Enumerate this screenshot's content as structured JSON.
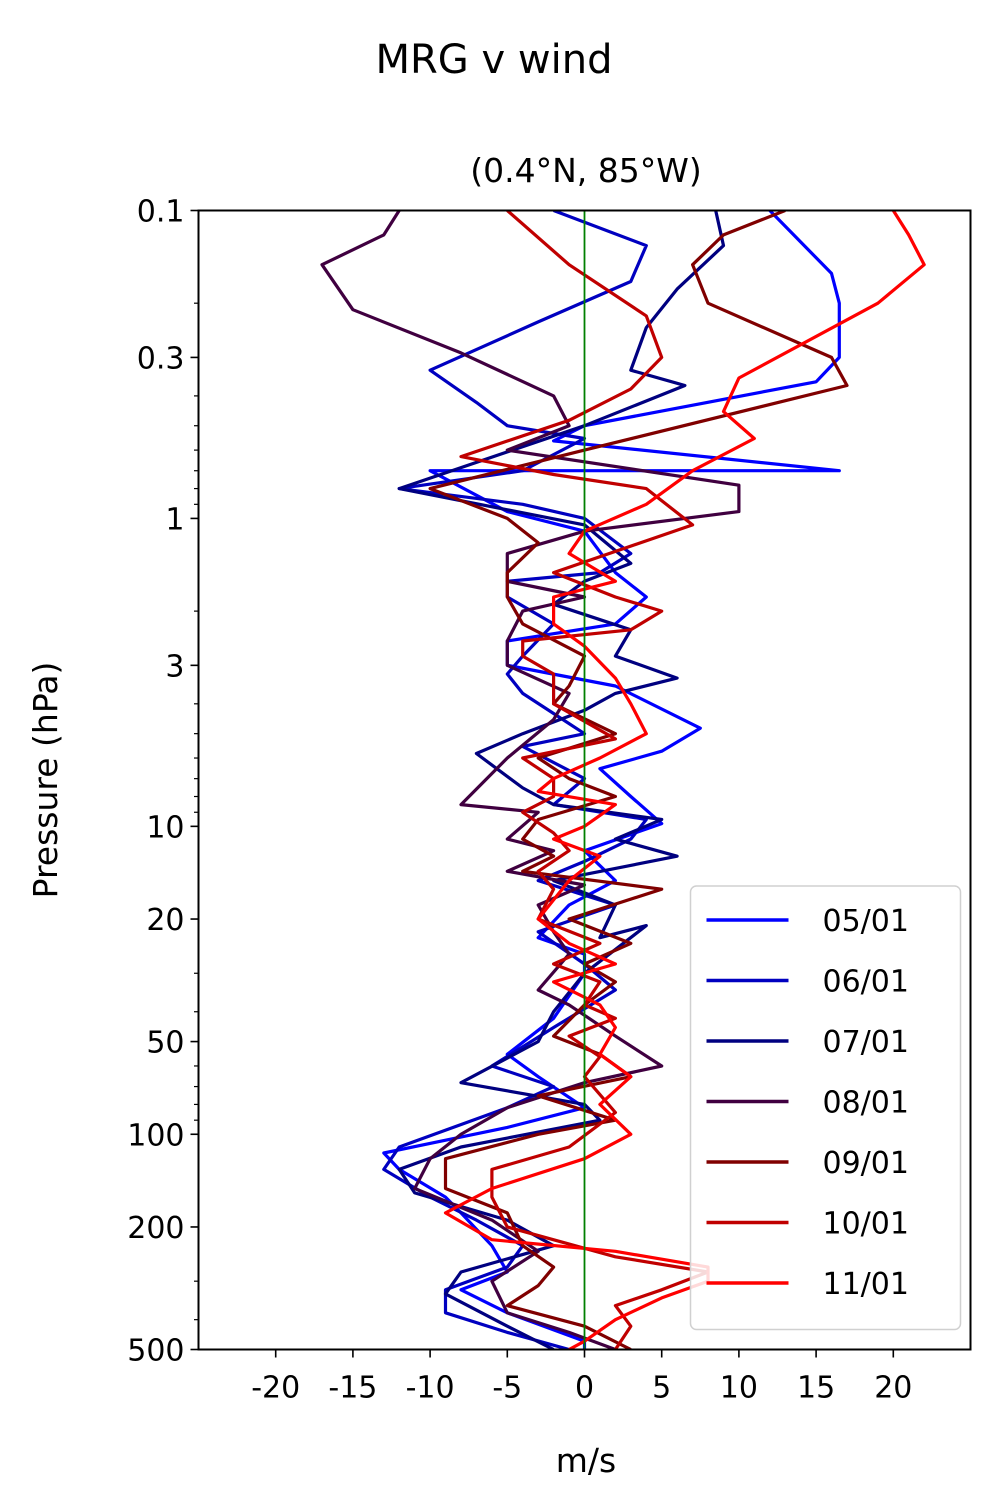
{
  "chart_data": {
    "type": "line",
    "suptitle": "MRG v wind",
    "title": "(0.4°N, 85°W)",
    "xlabel": "m/s",
    "ylabel": "Pressure (hPa)",
    "xlim": [
      -25,
      25
    ],
    "ylim": [
      500,
      0.1
    ],
    "yscale": "log",
    "y_inverted": true,
    "x_ticks": [
      -20,
      -15,
      -10,
      -5,
      0,
      5,
      10,
      15,
      20
    ],
    "x_tick_labels": [
      "-20",
      "-15",
      "-10",
      "-5",
      "0",
      "5",
      "10",
      "15",
      "20"
    ],
    "y_ticks": [
      0.1,
      0.3,
      1,
      3,
      10,
      20,
      50,
      100,
      200,
      500
    ],
    "y_tick_labels": [
      "0.1",
      "0.3",
      "1",
      "3",
      "10",
      "20",
      "50",
      "100",
      "200",
      "500"
    ],
    "zero_line": {
      "x": 0,
      "color": "#008000"
    },
    "grid": false,
    "legend_position": "lower-right",
    "series": [
      {
        "name": "05/01",
        "color": "#0000ff",
        "points": [
          [
            12,
            0.1
          ],
          [
            16,
            0.16
          ],
          [
            16.5,
            0.2
          ],
          [
            16.5,
            0.3
          ],
          [
            15,
            0.36
          ],
          [
            0,
            0.5
          ],
          [
            -2,
            0.56
          ],
          [
            16.5,
            0.7
          ],
          [
            -10,
            0.7
          ],
          [
            -5,
            0.95
          ],
          [
            0,
            1.1
          ],
          [
            2,
            1.5
          ],
          [
            4,
            1.8
          ],
          [
            2,
            2.2
          ],
          [
            -5,
            2.5
          ],
          [
            -5,
            3
          ],
          [
            2,
            3.5
          ],
          [
            7.5,
            4.8
          ],
          [
            5,
            5.7
          ],
          [
            1,
            6.5
          ],
          [
            3,
            8
          ],
          [
            5,
            9.8
          ],
          [
            0,
            12
          ],
          [
            2,
            15
          ],
          [
            -1,
            18
          ],
          [
            -3,
            23
          ],
          [
            0,
            26
          ],
          [
            0,
            30
          ],
          [
            -2,
            42
          ],
          [
            -5,
            55
          ],
          [
            -3,
            65
          ],
          [
            0,
            82
          ],
          [
            -5,
            95
          ],
          [
            -13,
            115
          ],
          [
            -12,
            130
          ],
          [
            -9,
            160
          ],
          [
            -8,
            180
          ],
          [
            -6,
            230
          ],
          [
            -5,
            280
          ],
          [
            -8,
            320
          ],
          [
            -5,
            380
          ],
          [
            0,
            470
          ],
          [
            0,
            500
          ]
        ]
      },
      {
        "name": "06/01",
        "color": "#0000c0",
        "points": [
          [
            -2,
            0.1
          ],
          [
            4,
            0.13
          ],
          [
            3,
            0.17
          ],
          [
            -3,
            0.23
          ],
          [
            -10,
            0.33
          ],
          [
            -7,
            0.42
          ],
          [
            -5,
            0.5
          ],
          [
            0,
            0.55
          ],
          [
            -4,
            0.7
          ],
          [
            -12,
            0.8
          ],
          [
            -4,
            0.9
          ],
          [
            0,
            1.0
          ],
          [
            3,
            1.3
          ],
          [
            1,
            1.5
          ],
          [
            -5,
            1.6
          ],
          [
            -5,
            1.8
          ],
          [
            -2,
            2.2
          ],
          [
            -4,
            2.8
          ],
          [
            -5,
            3.2
          ],
          [
            -4,
            3.7
          ],
          [
            -2,
            4.3
          ],
          [
            0,
            5
          ],
          [
            -4,
            5.5
          ],
          [
            0,
            7
          ],
          [
            -2,
            8.5
          ],
          [
            4,
            9.5
          ],
          [
            3,
            11
          ],
          [
            0,
            13
          ],
          [
            -3,
            15
          ],
          [
            2,
            18
          ],
          [
            -3,
            22
          ],
          [
            0,
            28
          ],
          [
            2,
            34
          ],
          [
            -2,
            45
          ],
          [
            -6,
            60
          ],
          [
            -2,
            70
          ],
          [
            -5,
            82
          ],
          [
            -12,
            110
          ],
          [
            -13,
            130
          ],
          [
            -10,
            160
          ],
          [
            -7,
            190
          ],
          [
            -4,
            230
          ],
          [
            -5,
            270
          ],
          [
            -9,
            320
          ],
          [
            -9,
            380
          ],
          [
            -5,
            440
          ],
          [
            -1,
            500
          ]
        ]
      },
      {
        "name": "07/01",
        "color": "#000080",
        "points": [
          [
            8.5,
            0.1
          ],
          [
            9,
            0.13
          ],
          [
            6,
            0.18
          ],
          [
            4,
            0.24
          ],
          [
            3,
            0.33
          ],
          [
            6.5,
            0.37
          ],
          [
            0,
            0.5
          ],
          [
            -12,
            0.8
          ],
          [
            0,
            1.05
          ],
          [
            3,
            1.4
          ],
          [
            0,
            1.6
          ],
          [
            -2,
            1.9
          ],
          [
            3,
            2.3
          ],
          [
            2,
            2.8
          ],
          [
            6,
            3.3
          ],
          [
            2,
            3.7
          ],
          [
            0,
            4.2
          ],
          [
            -4,
            5
          ],
          [
            -7,
            5.8
          ],
          [
            -4,
            7.5
          ],
          [
            -2,
            8.5
          ],
          [
            5,
            9.5
          ],
          [
            2,
            11
          ],
          [
            6,
            12.5
          ],
          [
            -2,
            15
          ],
          [
            2,
            18
          ],
          [
            1,
            23
          ],
          [
            4,
            21
          ],
          [
            0,
            30
          ],
          [
            -2,
            40
          ],
          [
            -3,
            50
          ],
          [
            -8,
            68
          ],
          [
            0,
            80
          ],
          [
            1,
            90
          ],
          [
            -8,
            110
          ],
          [
            -12,
            130
          ],
          [
            -11,
            155
          ],
          [
            -5,
            190
          ],
          [
            -2,
            230
          ],
          [
            -8,
            280
          ],
          [
            -9,
            330
          ],
          [
            -5,
            420
          ],
          [
            -2,
            500
          ]
        ]
      },
      {
        "name": "08/01",
        "color": "#400040",
        "points": [
          [
            -12,
            0.1
          ],
          [
            -13,
            0.12
          ],
          [
            -17,
            0.15
          ],
          [
            -15,
            0.21
          ],
          [
            -8,
            0.29
          ],
          [
            -2,
            0.4
          ],
          [
            -1,
            0.5
          ],
          [
            -5,
            0.6
          ],
          [
            10,
            0.78
          ],
          [
            10,
            0.95
          ],
          [
            0,
            1.1
          ],
          [
            -5,
            1.3
          ],
          [
            -5,
            1.6
          ],
          [
            0,
            1.8
          ],
          [
            -4,
            2
          ],
          [
            -5,
            2.5
          ],
          [
            -5,
            3
          ],
          [
            -1,
            3.7
          ],
          [
            -2,
            4.5
          ],
          [
            -5,
            6
          ],
          [
            -8,
            8.5
          ],
          [
            -3,
            9
          ],
          [
            -5,
            11
          ],
          [
            -2,
            12
          ],
          [
            -5,
            14
          ],
          [
            0,
            15.5
          ],
          [
            -3,
            18
          ],
          [
            -2,
            22
          ],
          [
            -1,
            26
          ],
          [
            -3,
            34
          ],
          [
            -1,
            38
          ],
          [
            2,
            48
          ],
          [
            5,
            60
          ],
          [
            0,
            68
          ],
          [
            -5,
            82
          ],
          [
            -8,
            100
          ],
          [
            -10,
            120
          ],
          [
            -11,
            150
          ],
          [
            -6,
            190
          ],
          [
            -3,
            240
          ],
          [
            -6,
            300
          ],
          [
            -5,
            380
          ],
          [
            -1,
            440
          ],
          [
            2,
            500
          ]
        ]
      },
      {
        "name": "09/01",
        "color": "#800000",
        "points": [
          [
            13,
            0.1
          ],
          [
            9,
            0.12
          ],
          [
            7,
            0.15
          ],
          [
            8,
            0.2
          ],
          [
            16,
            0.3
          ],
          [
            17,
            0.37
          ],
          [
            0,
            0.6
          ],
          [
            -10,
            0.8
          ],
          [
            -5,
            1.0
          ],
          [
            -3,
            1.2
          ],
          [
            -5,
            1.5
          ],
          [
            -5,
            1.8
          ],
          [
            -4,
            2.2
          ],
          [
            0,
            2.8
          ],
          [
            -1,
            3.5
          ],
          [
            -2,
            4
          ],
          [
            2,
            5
          ],
          [
            -3,
            6
          ],
          [
            -1,
            7
          ],
          [
            2,
            8
          ],
          [
            -3,
            9.5
          ],
          [
            -4,
            11
          ],
          [
            -2,
            12.5
          ],
          [
            -4,
            14
          ],
          [
            5,
            16
          ],
          [
            -1,
            20
          ],
          [
            3,
            24
          ],
          [
            0,
            28
          ],
          [
            2,
            32
          ],
          [
            0,
            38
          ],
          [
            -2,
            48
          ],
          [
            1,
            55
          ],
          [
            3,
            65
          ],
          [
            -3,
            75
          ],
          [
            2,
            90
          ],
          [
            -3,
            100
          ],
          [
            -9,
            120
          ],
          [
            -9,
            150
          ],
          [
            -5,
            180
          ],
          [
            -4,
            230
          ],
          [
            -2,
            270
          ],
          [
            -3,
            310
          ],
          [
            -5,
            360
          ],
          [
            0,
            420
          ],
          [
            3,
            500
          ]
        ]
      },
      {
        "name": "10/01",
        "color": "#c00000",
        "points": [
          [
            -5,
            0.1
          ],
          [
            -1,
            0.15
          ],
          [
            4,
            0.22
          ],
          [
            5,
            0.3
          ],
          [
            3,
            0.38
          ],
          [
            -1,
            0.48
          ],
          [
            -8,
            0.63
          ],
          [
            -2,
            0.72
          ],
          [
            4,
            0.8
          ],
          [
            7,
            1.05
          ],
          [
            -2,
            1.5
          ],
          [
            2,
            1.8
          ],
          [
            5,
            2
          ],
          [
            3,
            2.3
          ],
          [
            -4,
            2.5
          ],
          [
            -4,
            2.8
          ],
          [
            -2,
            3.2
          ],
          [
            -2,
            4
          ],
          [
            2,
            5.2
          ],
          [
            -4,
            6
          ],
          [
            -2,
            7
          ],
          [
            -2,
            8
          ],
          [
            -4,
            9
          ],
          [
            -2,
            10.5
          ],
          [
            -1,
            12
          ],
          [
            -3,
            14
          ],
          [
            -2,
            16
          ],
          [
            -3,
            20
          ],
          [
            1,
            24
          ],
          [
            -2,
            28
          ],
          [
            1,
            32
          ],
          [
            0,
            38
          ],
          [
            2,
            42
          ],
          [
            -1,
            48
          ],
          [
            1,
            56
          ],
          [
            0,
            65
          ],
          [
            2,
            85
          ],
          [
            -1,
            110
          ],
          [
            -6,
            130
          ],
          [
            -6,
            160
          ],
          [
            -5,
            200
          ],
          [
            2,
            250
          ],
          [
            8,
            280
          ],
          [
            5,
            320
          ],
          [
            2,
            360
          ],
          [
            3,
            420
          ],
          [
            2,
            500
          ]
        ]
      },
      {
        "name": "11/01",
        "color": "#ff0000",
        "points": [
          [
            20,
            0.1
          ],
          [
            21,
            0.12
          ],
          [
            22,
            0.15
          ],
          [
            19,
            0.2
          ],
          [
            10,
            0.35
          ],
          [
            9,
            0.45
          ],
          [
            11,
            0.55
          ],
          [
            7,
            0.7
          ],
          [
            4,
            0.9
          ],
          [
            0,
            1.1
          ],
          [
            -1,
            1.3
          ],
          [
            2,
            1.6
          ],
          [
            -2,
            1.8
          ],
          [
            -2,
            2.2
          ],
          [
            0,
            2.6
          ],
          [
            2,
            3.3
          ],
          [
            3,
            4
          ],
          [
            4,
            5
          ],
          [
            1,
            6
          ],
          [
            -2,
            7
          ],
          [
            -3,
            7.7
          ],
          [
            2,
            8.5
          ],
          [
            0,
            10
          ],
          [
            -2,
            11
          ],
          [
            1,
            12.5
          ],
          [
            -1,
            15
          ],
          [
            -3,
            20
          ],
          [
            -1,
            24
          ],
          [
            2,
            28
          ],
          [
            -2,
            32
          ],
          [
            1,
            38
          ],
          [
            2,
            45
          ],
          [
            1,
            55
          ],
          [
            3,
            65
          ],
          [
            1,
            80
          ],
          [
            3,
            100
          ],
          [
            0,
            120
          ],
          [
            -6,
            150
          ],
          [
            -9,
            180
          ],
          [
            -6,
            220
          ],
          [
            2,
            240
          ],
          [
            8,
            270
          ],
          [
            8,
            300
          ],
          [
            5,
            340
          ],
          [
            2,
            400
          ],
          [
            0,
            470
          ],
          [
            -1,
            500
          ]
        ]
      }
    ]
  }
}
